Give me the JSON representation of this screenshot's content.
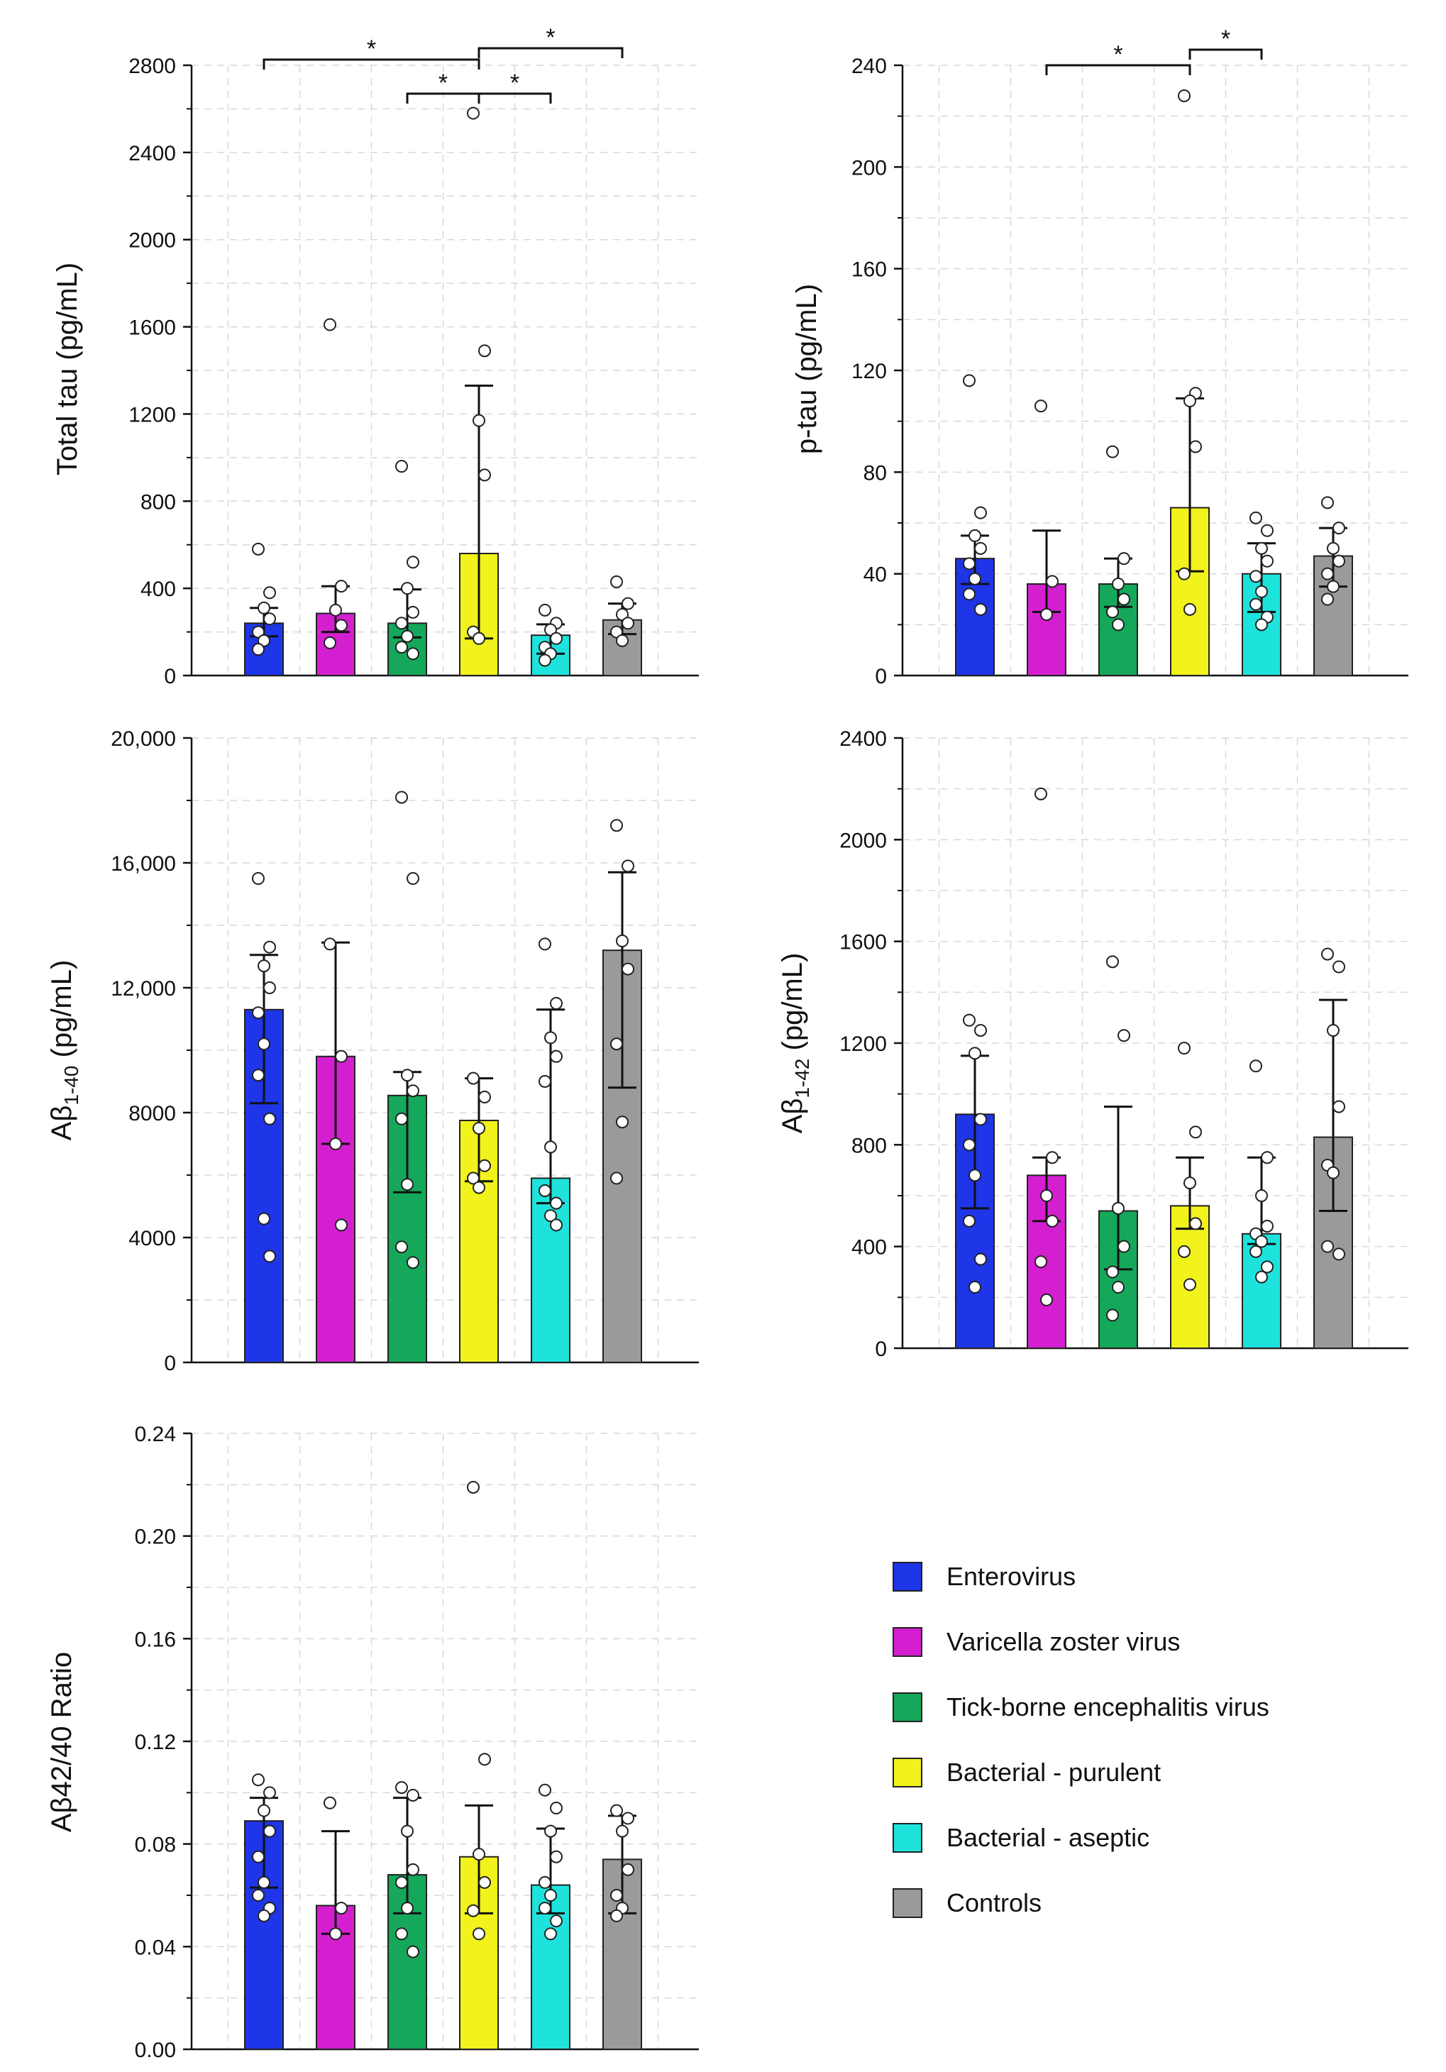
{
  "legend": {
    "items": [
      {
        "label": "Enterovirus",
        "color": "#1f35e8"
      },
      {
        "label": "Varicella zoster virus",
        "color": "#d41fd0"
      },
      {
        "label": "Tick-borne encephalitis virus",
        "color": "#15a85a"
      },
      {
        "label": "Bacterial - purulent",
        "color": "#f2f21c"
      },
      {
        "label": "Bacterial - aseptic",
        "color": "#1ee3dc"
      },
      {
        "label": "Controls",
        "color": "#9a9a9a"
      }
    ]
  },
  "chart_data": [
    {
      "type": "bar",
      "ylabel": "Total tau (pg/mL)",
      "ylabel_parts": [
        "Total tau (pg/mL)"
      ],
      "ylim": [
        0,
        2800
      ],
      "yticks": [
        0,
        400,
        800,
        1200,
        1600,
        2000,
        2400,
        2800
      ],
      "ytick_labels": [
        "0",
        "400",
        "800",
        "1200",
        "1600",
        "2000",
        "2400",
        "2800"
      ],
      "categories": [
        "Enterovirus",
        "Varicella zoster virus",
        "Tick-borne encephalitis virus",
        "Bacterial - purulent",
        "Bacterial - aseptic",
        "Controls"
      ],
      "values": [
        240,
        285,
        240,
        560,
        185,
        255
      ],
      "error_upper": [
        310,
        410,
        395,
        1330,
        235,
        330
      ],
      "error_lower": [
        180,
        200,
        175,
        170,
        100,
        190
      ],
      "points": [
        [
          580,
          380,
          310,
          260,
          200,
          160,
          120
        ],
        [
          1610,
          410,
          300,
          230,
          150
        ],
        [
          960,
          520,
          400,
          290,
          240,
          180,
          130,
          100
        ],
        [
          2580,
          1490,
          1170,
          920,
          200,
          170
        ],
        [
          300,
          240,
          210,
          170,
          130,
          100,
          70
        ],
        [
          430,
          330,
          280,
          240,
          200,
          160
        ]
      ],
      "significance": [
        {
          "from": 0,
          "to": 3,
          "label": "*",
          "level": 2
        },
        {
          "from": 3,
          "to": 5,
          "label": "*",
          "level": 3
        },
        {
          "from": 2,
          "to": 3,
          "label": "*",
          "level": 1
        },
        {
          "from": 3,
          "to": 4,
          "label": "*",
          "level": 1
        }
      ]
    },
    {
      "type": "bar",
      "ylabel": "p-tau (pg/mL)",
      "ylabel_parts": [
        "p-tau (pg/mL)"
      ],
      "ylim": [
        0,
        240
      ],
      "yticks": [
        0,
        40,
        80,
        120,
        160,
        200,
        240
      ],
      "ytick_labels": [
        "0",
        "40",
        "80",
        "120",
        "160",
        "200",
        "240"
      ],
      "categories": [
        "Enterovirus",
        "Varicella zoster virus",
        "Tick-borne encephalitis virus",
        "Bacterial - purulent",
        "Bacterial - aseptic",
        "Controls"
      ],
      "values": [
        46,
        36,
        36,
        66,
        40,
        47
      ],
      "error_upper": [
        55,
        57,
        46,
        109,
        52,
        58
      ],
      "error_lower": [
        36,
        25,
        27,
        41,
        25,
        35
      ],
      "points": [
        [
          116,
          64,
          55,
          50,
          44,
          38,
          32,
          26
        ],
        [
          106,
          37,
          24
        ],
        [
          88,
          46,
          36,
          30,
          25,
          20
        ],
        [
          228,
          111,
          108,
          90,
          40,
          26
        ],
        [
          62,
          57,
          50,
          45,
          39,
          33,
          28,
          23,
          20
        ],
        [
          68,
          58,
          50,
          45,
          40,
          35,
          30
        ]
      ],
      "significance": [
        {
          "from": 1,
          "to": 3,
          "label": "*",
          "level": 1
        },
        {
          "from": 3,
          "to": 4,
          "label": "*",
          "level": 2
        }
      ]
    },
    {
      "type": "bar",
      "ylabel": "Aβ1-40 (pg/mL)",
      "ylabel_parts": [
        "Aβ",
        "1-40",
        " (pg/mL)"
      ],
      "ylim": [
        0,
        20000
      ],
      "yticks": [
        0,
        4000,
        8000,
        12000,
        16000,
        20000
      ],
      "ytick_labels": [
        "0",
        "4000",
        "8000",
        "12,000",
        "16,000",
        "20,000"
      ],
      "categories": [
        "Enterovirus",
        "Varicella zoster virus",
        "Tick-borne encephalitis virus",
        "Bacterial - purulent",
        "Bacterial - aseptic",
        "Controls"
      ],
      "values": [
        11300,
        9800,
        8550,
        7750,
        5900,
        13200
      ],
      "error_upper": [
        13050,
        13450,
        9300,
        9100,
        11300,
        15700
      ],
      "error_lower": [
        8300,
        7000,
        5450,
        5800,
        5100,
        8800
      ],
      "points": [
        [
          15500,
          13300,
          12700,
          12000,
          11200,
          10200,
          9200,
          7800,
          4600,
          3400
        ],
        [
          13400,
          9800,
          7000,
          4400
        ],
        [
          18100,
          15500,
          9200,
          8700,
          7800,
          5700,
          3700,
          3200
        ],
        [
          9100,
          8500,
          7500,
          6300,
          5900,
          5600
        ],
        [
          13400,
          11500,
          10400,
          9800,
          9000,
          6900,
          5500,
          5100,
          4700,
          4400
        ],
        [
          17200,
          15900,
          13500,
          12600,
          10200,
          7700,
          5900
        ]
      ],
      "significance": []
    },
    {
      "type": "bar",
      "ylabel": "Aβ1-42 (pg/mL)",
      "ylabel_parts": [
        "Aβ",
        "1-42",
        " (pg/mL)"
      ],
      "ylim": [
        0,
        2400
      ],
      "yticks": [
        0,
        400,
        800,
        1200,
        1600,
        2000,
        2400
      ],
      "ytick_labels": [
        "0",
        "400",
        "800",
        "1200",
        "1600",
        "2000",
        "2400"
      ],
      "categories": [
        "Enterovirus",
        "Varicella zoster virus",
        "Tick-borne encephalitis virus",
        "Bacterial - purulent",
        "Bacterial - aseptic",
        "Controls"
      ],
      "values": [
        920,
        680,
        540,
        560,
        450,
        830
      ],
      "error_upper": [
        1150,
        750,
        950,
        750,
        750,
        1370
      ],
      "error_lower": [
        550,
        500,
        310,
        470,
        410,
        540
      ],
      "points": [
        [
          1290,
          1250,
          1160,
          900,
          800,
          680,
          500,
          350,
          240
        ],
        [
          2180,
          750,
          600,
          500,
          340,
          190
        ],
        [
          1520,
          1230,
          550,
          400,
          300,
          240,
          130
        ],
        [
          1180,
          850,
          650,
          490,
          380,
          250
        ],
        [
          1110,
          750,
          600,
          480,
          450,
          420,
          380,
          320,
          280
        ],
        [
          1550,
          1500,
          1250,
          950,
          720,
          690,
          400,
          370
        ]
      ],
      "significance": []
    },
    {
      "type": "bar",
      "ylabel": "Aβ42/40 Ratio",
      "ylabel_parts": [
        "Aβ42/40 Ratio"
      ],
      "ylim": [
        0,
        0.24
      ],
      "yticks": [
        0,
        0.04,
        0.08,
        0.12,
        0.16,
        0.2,
        0.24
      ],
      "ytick_labels": [
        "0.00",
        "0.04",
        "0.08",
        "0.12",
        "0.16",
        "0.20",
        "0.24"
      ],
      "categories": [
        "Enterovirus",
        "Varicella zoster virus",
        "Tick-borne encephalitis virus",
        "Bacterial - purulent",
        "Bacterial - aseptic",
        "Controls"
      ],
      "values": [
        0.089,
        0.056,
        0.068,
        0.075,
        0.064,
        0.074
      ],
      "error_upper": [
        0.098,
        0.085,
        0.098,
        0.095,
        0.086,
        0.091
      ],
      "error_lower": [
        0.063,
        0.045,
        0.053,
        0.053,
        0.053,
        0.053
      ],
      "points": [
        [
          0.105,
          0.1,
          0.093,
          0.085,
          0.075,
          0.065,
          0.06,
          0.055,
          0.052
        ],
        [
          0.096,
          0.055,
          0.045
        ],
        [
          0.102,
          0.099,
          0.085,
          0.07,
          0.065,
          0.055,
          0.045,
          0.038
        ],
        [
          0.219,
          0.113,
          0.076,
          0.065,
          0.054,
          0.045
        ],
        [
          0.101,
          0.094,
          0.085,
          0.075,
          0.065,
          0.06,
          0.055,
          0.05,
          0.045
        ],
        [
          0.093,
          0.09,
          0.085,
          0.07,
          0.06,
          0.055,
          0.052
        ]
      ],
      "significance": []
    }
  ]
}
